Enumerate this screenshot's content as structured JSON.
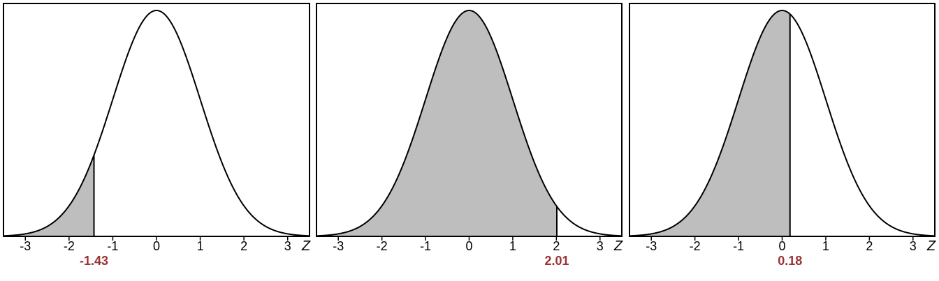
{
  "colors": {
    "shade": "#bebebe",
    "curve": "#000000",
    "frame": "#000000",
    "cutoff_label": "#993333",
    "background": "#ffffff"
  },
  "chart_data": [
    {
      "type": "area",
      "distribution": "standard normal",
      "xlabel": "Z",
      "xlim": [
        -3.5,
        3.5
      ],
      "xticks": [
        -3,
        -2,
        -1,
        0,
        1,
        2,
        3
      ],
      "xtick_labels": [
        "-3",
        "-2",
        "-1",
        "0",
        "1",
        "2",
        "3"
      ],
      "cutoff": -1.43,
      "cutoff_label": "-1.43",
      "shaded_region": "left of cutoff",
      "grid": false
    },
    {
      "type": "area",
      "distribution": "standard normal",
      "xlabel": "Z",
      "xlim": [
        -3.5,
        3.5
      ],
      "xticks": [
        -3,
        -2,
        -1,
        0,
        1,
        2,
        3
      ],
      "xtick_labels": [
        "-3",
        "-2",
        "-1",
        "0",
        "1",
        "2",
        "3"
      ],
      "cutoff": 2.01,
      "cutoff_label": "2.01",
      "shaded_region": "left of cutoff",
      "grid": false
    },
    {
      "type": "area",
      "distribution": "standard normal",
      "xlabel": "Z",
      "xlim": [
        -3.5,
        3.5
      ],
      "xticks": [
        -3,
        -2,
        -1,
        0,
        1,
        2,
        3
      ],
      "xtick_labels": [
        "-3",
        "-2",
        "-1",
        "0",
        "1",
        "2",
        "3"
      ],
      "cutoff": 0.18,
      "cutoff_label": "0.18",
      "shaded_region": "left of cutoff",
      "grid": false
    }
  ]
}
